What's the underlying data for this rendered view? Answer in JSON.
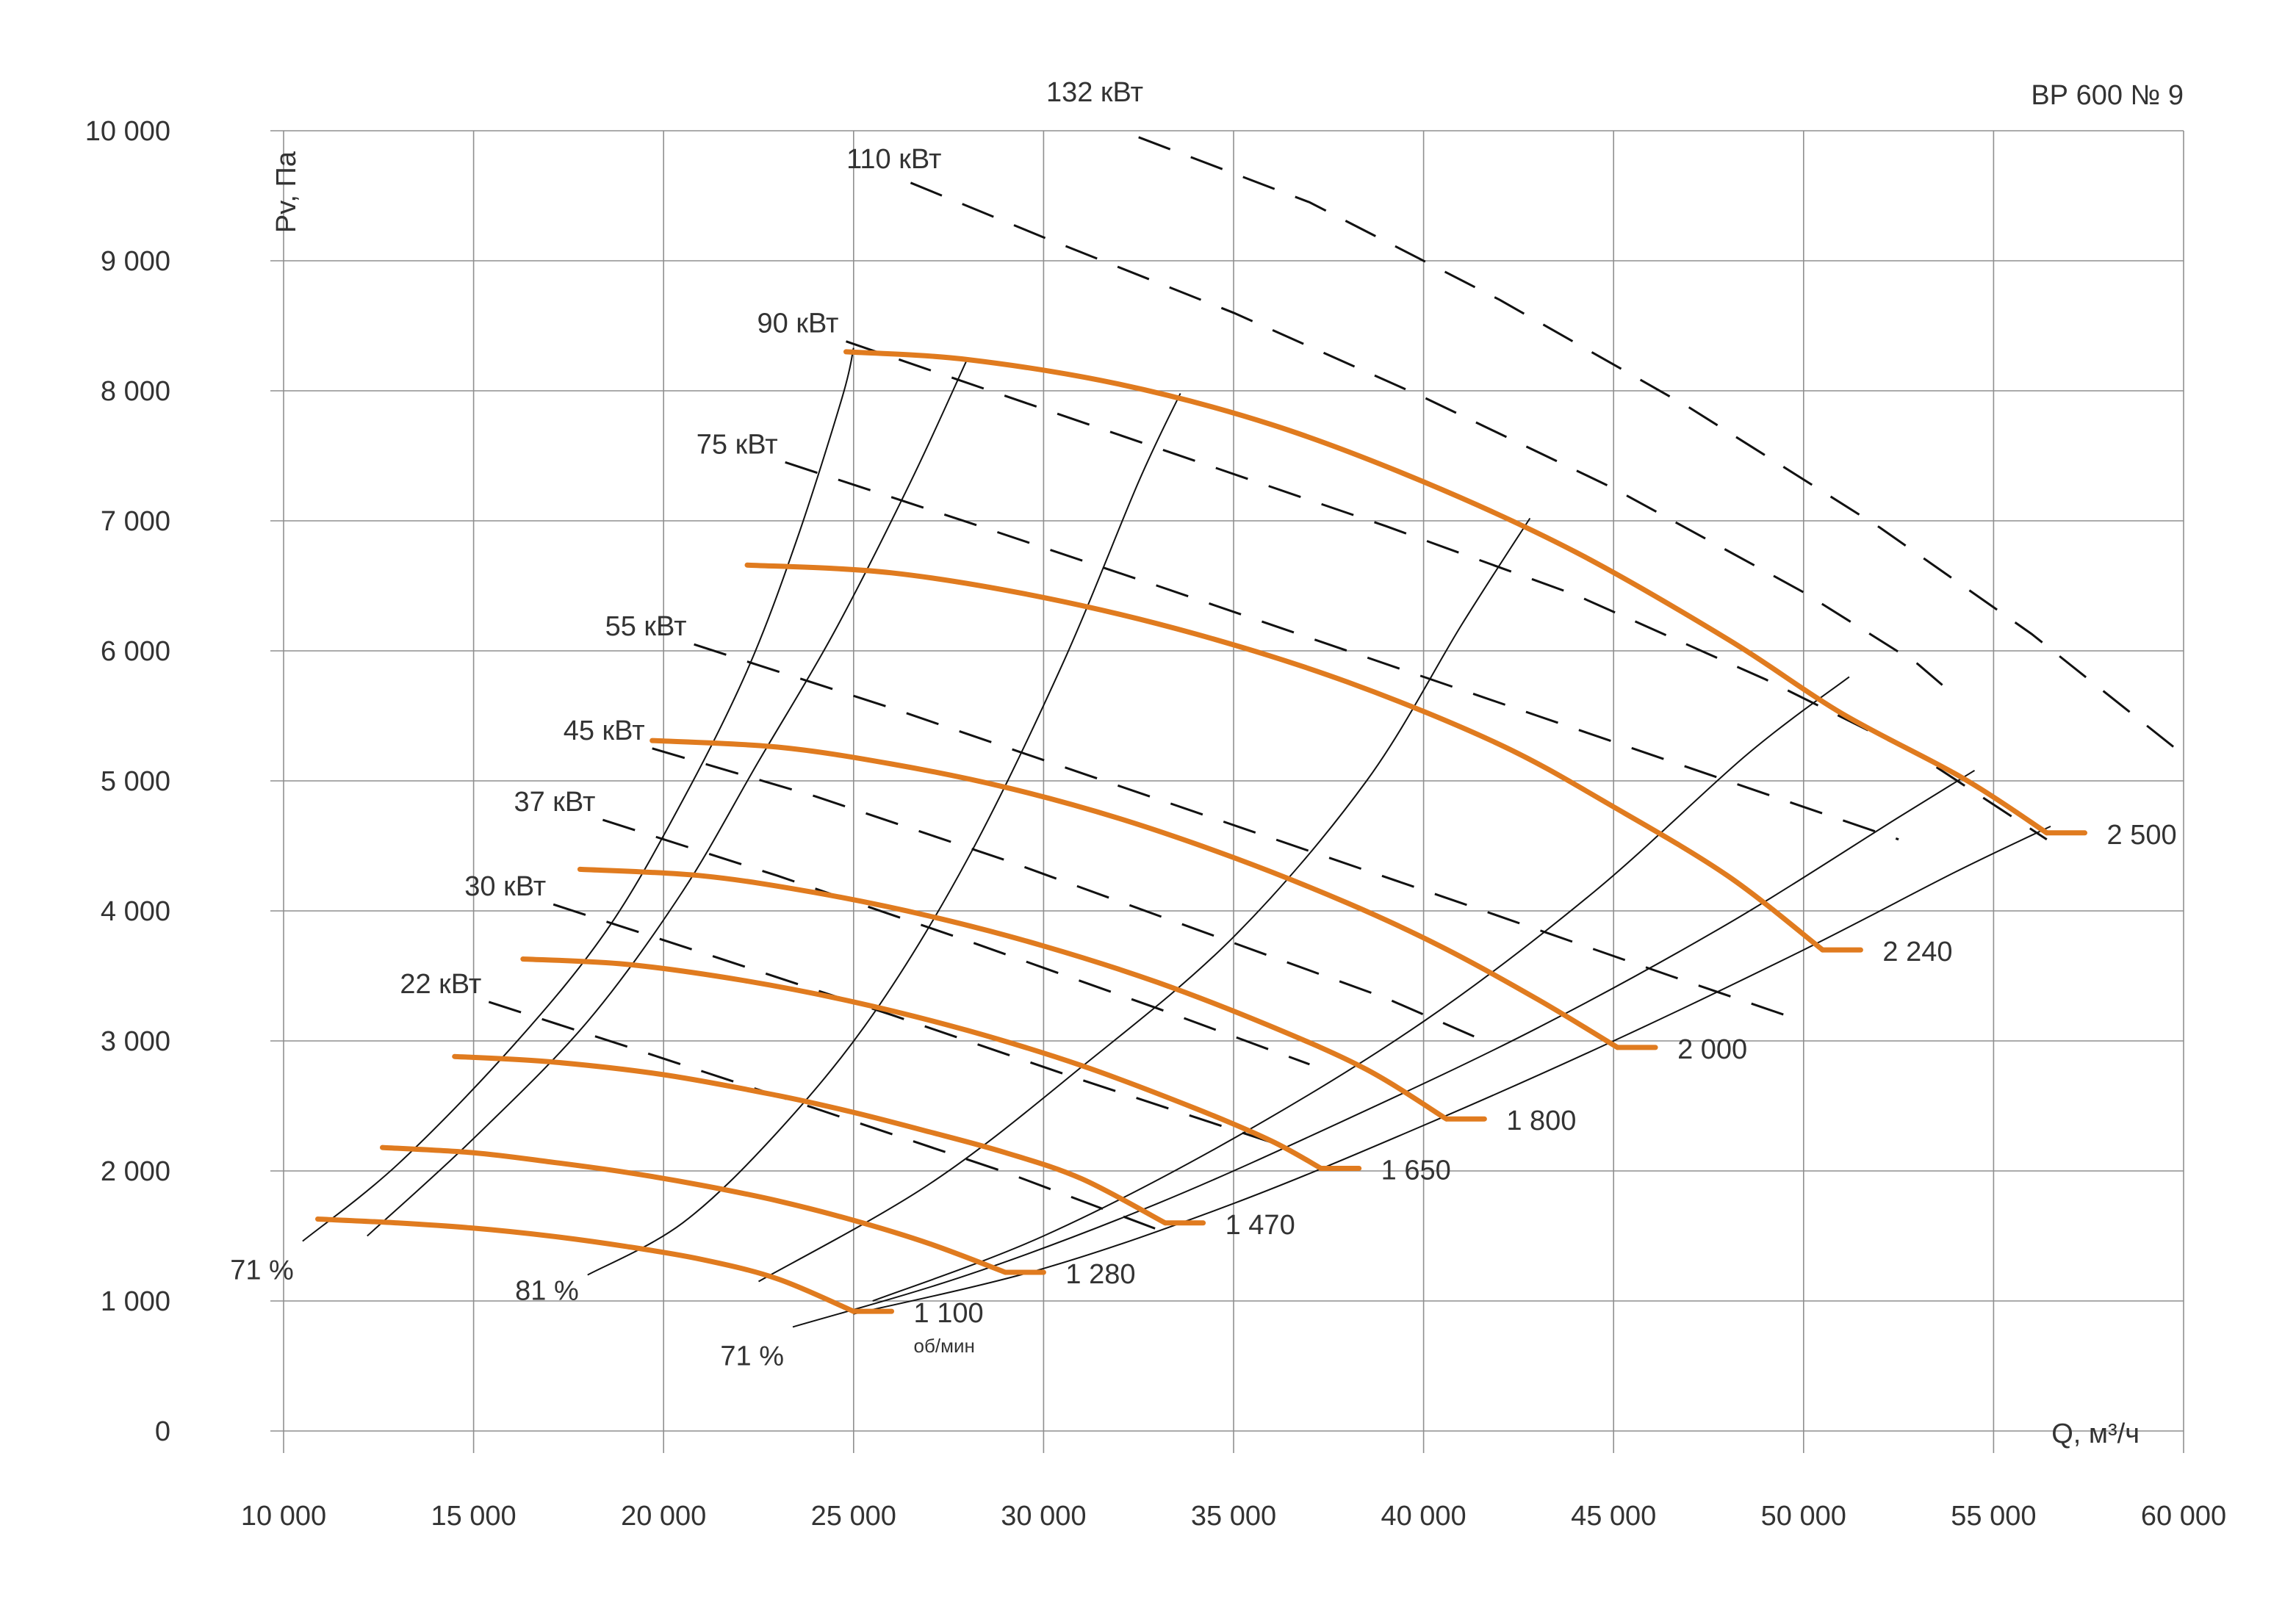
{
  "chart_data": {
    "type": "line",
    "title": "ВР 600 № 9",
    "xlabel": "Q, м³/ч",
    "ylabel": "Pv, Па",
    "xlim": [
      10000,
      60000
    ],
    "ylim": [
      0,
      10000
    ],
    "grid": true,
    "x_ticks": [
      {
        "value": 10000,
        "label": "10 000"
      },
      {
        "value": 15000,
        "label": "15 000"
      },
      {
        "value": 20000,
        "label": "20 000"
      },
      {
        "value": 25000,
        "label": "25 000"
      },
      {
        "value": 30000,
        "label": "30 000"
      },
      {
        "value": 35000,
        "label": "35 000"
      },
      {
        "value": 40000,
        "label": "40 000"
      },
      {
        "value": 45000,
        "label": "45 000"
      },
      {
        "value": 50000,
        "label": "50 000"
      },
      {
        "value": 55000,
        "label": "55 000"
      },
      {
        "value": 60000,
        "label": "60 000"
      }
    ],
    "y_ticks": [
      {
        "value": 0,
        "label": "0"
      },
      {
        "value": 1000,
        "label": "1 000"
      },
      {
        "value": 2000,
        "label": "2 000"
      },
      {
        "value": 3000,
        "label": "3 000"
      },
      {
        "value": 4000,
        "label": "4 000"
      },
      {
        "value": 5000,
        "label": "5 000"
      },
      {
        "value": 6000,
        "label": "6 000"
      },
      {
        "value": 7000,
        "label": "7 000"
      },
      {
        "value": 8000,
        "label": "8 000"
      },
      {
        "value": 9000,
        "label": "9 000"
      },
      {
        "value": 10000,
        "label": "10 000"
      }
    ],
    "speed_unit": "об/мин",
    "speed_curves": [
      {
        "label": "1 100",
        "color": "#e07b1f",
        "points": [
          [
            10900,
            1630
          ],
          [
            13000,
            1600
          ],
          [
            15000,
            1560
          ],
          [
            17000,
            1500
          ],
          [
            19000,
            1420
          ],
          [
            21000,
            1320
          ],
          [
            23000,
            1170
          ],
          [
            25000,
            920
          ]
        ],
        "tail": [
          26000,
          920
        ]
      },
      {
        "label": "1 280",
        "color": "#e07b1f",
        "points": [
          [
            12600,
            2180
          ],
          [
            15000,
            2140
          ],
          [
            17000,
            2070
          ],
          [
            19000,
            1990
          ],
          [
            21000,
            1890
          ],
          [
            23000,
            1770
          ],
          [
            25000,
            1620
          ],
          [
            27000,
            1440
          ],
          [
            29000,
            1220
          ]
        ],
        "tail": [
          30000,
          1220
        ]
      },
      {
        "label": "1 470",
        "color": "#e07b1f",
        "points": [
          [
            14500,
            2880
          ],
          [
            17000,
            2840
          ],
          [
            20000,
            2740
          ],
          [
            23000,
            2580
          ],
          [
            25000,
            2450
          ],
          [
            27000,
            2300
          ],
          [
            29000,
            2140
          ],
          [
            31000,
            1940
          ],
          [
            33200,
            1600
          ]
        ],
        "tail": [
          34200,
          1600
        ]
      },
      {
        "label": "1 650",
        "color": "#e07b1f",
        "points": [
          [
            16300,
            3630
          ],
          [
            19000,
            3590
          ],
          [
            22000,
            3470
          ],
          [
            25000,
            3300
          ],
          [
            28000,
            3080
          ],
          [
            31000,
            2810
          ],
          [
            34000,
            2480
          ],
          [
            36000,
            2230
          ],
          [
            37300,
            2020
          ]
        ],
        "tail": [
          38300,
          2020
        ]
      },
      {
        "label": "1 800",
        "color": "#e07b1f",
        "points": [
          [
            17800,
            4320
          ],
          [
            21000,
            4270
          ],
          [
            24000,
            4140
          ],
          [
            27000,
            3960
          ],
          [
            30000,
            3730
          ],
          [
            33000,
            3450
          ],
          [
            36000,
            3110
          ],
          [
            38500,
            2780
          ],
          [
            40600,
            2400
          ]
        ],
        "tail": [
          41600,
          2400
        ]
      },
      {
        "label": "2 000",
        "color": "#e07b1f",
        "points": [
          [
            19700,
            5310
          ],
          [
            23000,
            5260
          ],
          [
            26000,
            5130
          ],
          [
            29000,
            4950
          ],
          [
            32000,
            4710
          ],
          [
            35000,
            4410
          ],
          [
            38000,
            4060
          ],
          [
            40500,
            3720
          ],
          [
            43000,
            3320
          ],
          [
            45100,
            2950
          ]
        ],
        "tail": [
          46100,
          2950
        ]
      },
      {
        "label": "2 240",
        "color": "#e07b1f",
        "points": [
          [
            22200,
            6660
          ],
          [
            26000,
            6600
          ],
          [
            30000,
            6410
          ],
          [
            34000,
            6130
          ],
          [
            38000,
            5760
          ],
          [
            42000,
            5280
          ],
          [
            45000,
            4800
          ],
          [
            48000,
            4270
          ],
          [
            50500,
            3700
          ]
        ],
        "tail": [
          51500,
          3700
        ]
      },
      {
        "label": "2 500",
        "color": "#e07b1f",
        "points": [
          [
            24800,
            8300
          ],
          [
            28000,
            8240
          ],
          [
            32000,
            8050
          ],
          [
            36000,
            7740
          ],
          [
            40000,
            7300
          ],
          [
            44000,
            6760
          ],
          [
            48000,
            6090
          ],
          [
            51000,
            5520
          ],
          [
            54200,
            5020
          ],
          [
            56400,
            4600
          ]
        ],
        "tail": [
          57400,
          4600
        ]
      }
    ],
    "efficiency_lines": [
      {
        "label": "71 %",
        "points": [
          [
            10500,
            1460
          ],
          [
            13000,
            2050
          ],
          [
            16000,
            2950
          ],
          [
            18500,
            3850
          ],
          [
            20500,
            4850
          ],
          [
            22200,
            5850
          ],
          [
            23500,
            6850
          ],
          [
            24700,
            7950
          ],
          [
            25000,
            8330
          ]
        ]
      },
      {
        "points": [
          [
            12200,
            1500
          ],
          [
            15000,
            2250
          ],
          [
            18000,
            3150
          ],
          [
            20500,
            4150
          ],
          [
            22500,
            5150
          ],
          [
            24500,
            6150
          ],
          [
            26500,
            7300
          ],
          [
            28000,
            8250
          ]
        ]
      },
      {
        "label": "81 %",
        "points": [
          [
            18000,
            1200
          ],
          [
            20500,
            1600
          ],
          [
            23000,
            2300
          ],
          [
            25500,
            3200
          ],
          [
            28000,
            4400
          ],
          [
            30500,
            5900
          ],
          [
            32500,
            7300
          ],
          [
            33600,
            7980
          ]
        ]
      },
      {
        "points": [
          [
            22500,
            1150
          ],
          [
            27000,
            1900
          ],
          [
            31000,
            2800
          ],
          [
            35000,
            3800
          ],
          [
            38500,
            5000
          ],
          [
            41000,
            6200
          ],
          [
            42800,
            7020
          ]
        ]
      },
      {
        "points": [
          [
            25500,
            1000
          ],
          [
            30000,
            1500
          ],
          [
            35000,
            2250
          ],
          [
            40000,
            3150
          ],
          [
            44500,
            4150
          ],
          [
            48500,
            5200
          ],
          [
            51200,
            5800
          ]
        ]
      },
      {
        "label": "71 %",
        "points": [
          [
            23400,
            800
          ],
          [
            28000,
            1200
          ],
          [
            33000,
            1750
          ],
          [
            38000,
            2400
          ],
          [
            43000,
            3100
          ],
          [
            48000,
            3900
          ],
          [
            52500,
            4720
          ],
          [
            54500,
            5080
          ]
        ]
      },
      {
        "points": [
          [
            25000,
            900
          ],
          [
            30000,
            1250
          ],
          [
            35000,
            1750
          ],
          [
            40000,
            2350
          ],
          [
            45000,
            3000
          ],
          [
            50000,
            3700
          ],
          [
            54000,
            4300
          ],
          [
            56500,
            4650
          ]
        ]
      }
    ],
    "power_lines": [
      {
        "label": "22 кВт",
        "points": [
          [
            15400,
            3300
          ],
          [
            19000,
            2960
          ],
          [
            24000,
            2480
          ],
          [
            29000,
            1990
          ],
          [
            33000,
            1550
          ]
        ]
      },
      {
        "label": "30 кВт",
        "points": [
          [
            17100,
            4050
          ],
          [
            21000,
            3680
          ],
          [
            26000,
            3200
          ],
          [
            31000,
            2700
          ],
          [
            36000,
            2220
          ]
        ]
      },
      {
        "label": "37 кВт",
        "points": [
          [
            18400,
            4700
          ],
          [
            23000,
            4270
          ],
          [
            28000,
            3770
          ],
          [
            33000,
            3250
          ],
          [
            37000,
            2820
          ]
        ]
      },
      {
        "label": "45 кВт",
        "points": [
          [
            19700,
            5250
          ],
          [
            24000,
            4880
          ],
          [
            29000,
            4390
          ],
          [
            34000,
            3860
          ],
          [
            39000,
            3330
          ],
          [
            41600,
            3000
          ]
        ]
      },
      {
        "label": "55 кВт",
        "points": [
          [
            20800,
            6050
          ],
          [
            26000,
            5560
          ],
          [
            31000,
            5060
          ],
          [
            36000,
            4560
          ],
          [
            41000,
            4060
          ],
          [
            46500,
            3500
          ],
          [
            50000,
            3150
          ]
        ]
      },
      {
        "label": "75 кВт",
        "points": [
          [
            23200,
            7450
          ],
          [
            28000,
            6990
          ],
          [
            33000,
            6500
          ],
          [
            38000,
            6000
          ],
          [
            43000,
            5500
          ],
          [
            48000,
            5000
          ],
          [
            52500,
            4550
          ]
        ]
      },
      {
        "label": "90 кВт",
        "points": [
          [
            24800,
            8380
          ],
          [
            29000,
            7960
          ],
          [
            34000,
            7460
          ],
          [
            39000,
            6960
          ],
          [
            44000,
            6430
          ],
          [
            49000,
            5780
          ],
          [
            53000,
            5200
          ],
          [
            56400,
            4550
          ]
        ]
      },
      {
        "label": "110 кВт",
        "points": [
          [
            26500,
            9600
          ],
          [
            30000,
            9180
          ],
          [
            35000,
            8600
          ],
          [
            40000,
            7950
          ],
          [
            45000,
            7250
          ],
          [
            50000,
            6450
          ],
          [
            53000,
            5900
          ],
          [
            54000,
            5650
          ]
        ]
      },
      {
        "label": "132 кВт",
        "points": [
          [
            32500,
            9950
          ],
          [
            37000,
            9450
          ],
          [
            42000,
            8700
          ],
          [
            47000,
            7870
          ],
          [
            52000,
            6950
          ],
          [
            56000,
            6130
          ],
          [
            60000,
            5200
          ]
        ]
      }
    ]
  }
}
